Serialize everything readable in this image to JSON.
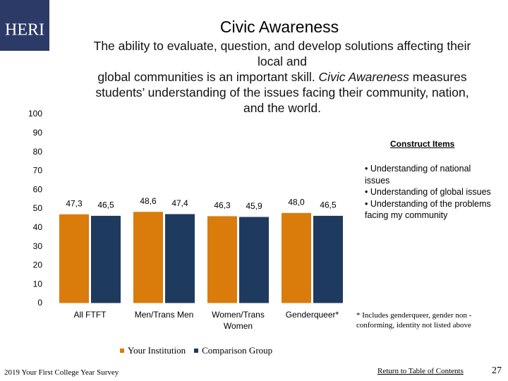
{
  "logo": "HERI",
  "subtitle_lines": [
    "The ability to evaluate, question, and develop solutions affecting their",
    "local and",
    [
      "global communities is an important skill. ",
      "Civic Awareness",
      " measures"
    ],
    "students’   understanding of the issues facing their community, nation,",
    "and the world."
  ],
  "construct_items": {
    "title": "Construct Items",
    "items": [
      "• Understanding of national issues",
      "• Understanding of global issues",
      "• Understanding of the problems facing my community"
    ]
  },
  "footnote": "* Includes genderqueer, gender non - conforming, identity not listed above",
  "footer": {
    "survey": "2019 Your First College Year Survey",
    "link": "Return to Table of Contents",
    "page": "27"
  },
  "chart_data": {
    "type": "bar",
    "title": "Civic Awareness",
    "categories": [
      "All FTFT",
      "Men/Trans Men",
      "Women/Trans Women",
      "Genderqueer*"
    ],
    "series": [
      {
        "name": "Your Institution",
        "color": "#d97c0b",
        "values": [
          47.3,
          48.6,
          46.3,
          48.0
        ],
        "value_labels": [
          "47,3",
          "48,6",
          "46,3",
          "48,0"
        ]
      },
      {
        "name": "Comparison Group",
        "color": "#1f3a5f",
        "values": [
          46.5,
          47.4,
          45.9,
          46.5
        ],
        "value_labels": [
          "46,5",
          "47,4",
          "45,9",
          "46,5"
        ]
      }
    ],
    "ylim": [
      0,
      100
    ],
    "yticks": [
      0,
      10,
      20,
      30,
      40,
      50,
      60,
      70,
      80,
      90,
      100
    ],
    "grid": false
  }
}
